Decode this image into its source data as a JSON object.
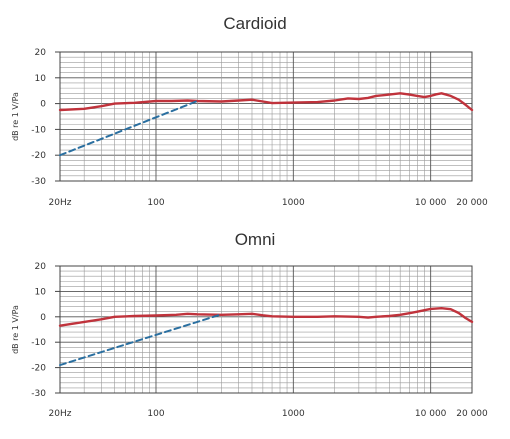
{
  "chart_data": [
    {
      "type": "line",
      "title": "Cardioid",
      "xlabel": "",
      "ylabel": "dB re 1 V/Pa",
      "x_scale": "log",
      "xlim": [
        20,
        20000
      ],
      "ylim": [
        -30,
        20
      ],
      "x_ticks": [
        20,
        100,
        1000,
        10000,
        20000
      ],
      "x_tick_labels": [
        "20Hz",
        "100",
        "1000",
        "10 000",
        "20 000"
      ],
      "y_ticks": [
        20,
        10,
        0,
        -10,
        -20,
        -30
      ],
      "y_tick_labels": [
        "20",
        "10",
        "0",
        "-10",
        "-20",
        "-30"
      ],
      "grid": true,
      "series": [
        {
          "style": "solid",
          "color": "#c0333c",
          "points": [
            [
              20,
              -2.5
            ],
            [
              30,
              -2
            ],
            [
              40,
              -1
            ],
            [
              50,
              0
            ],
            [
              70,
              0.3
            ],
            [
              100,
              1
            ],
            [
              130,
              1
            ],
            [
              170,
              1.2
            ],
            [
              200,
              1
            ],
            [
              300,
              0.8
            ],
            [
              400,
              1.2
            ],
            [
              500,
              1.5
            ],
            [
              600,
              0.8
            ],
            [
              700,
              0.2
            ],
            [
              1000,
              0.4
            ],
            [
              1500,
              0.6
            ],
            [
              2000,
              1.2
            ],
            [
              2500,
              2
            ],
            [
              3000,
              1.8
            ],
            [
              3500,
              2.2
            ],
            [
              4000,
              3
            ],
            [
              5000,
              3.5
            ],
            [
              6000,
              4
            ],
            [
              7000,
              3.5
            ],
            [
              8000,
              3
            ],
            [
              9000,
              2.5
            ],
            [
              10000,
              3
            ],
            [
              11000,
              3.6
            ],
            [
              12000,
              4
            ],
            [
              14000,
              3
            ],
            [
              16000,
              1.5
            ],
            [
              18000,
              -0.5
            ],
            [
              20000,
              -2.5
            ]
          ]
        },
        {
          "style": "dashed",
          "color": "#2a6fa0",
          "points": [
            [
              20,
              -20
            ],
            [
              200,
              1
            ]
          ]
        }
      ]
    },
    {
      "type": "line",
      "title": "Omni",
      "xlabel": "",
      "ylabel": "dB re 1 V/Pa",
      "x_scale": "log",
      "xlim": [
        20,
        20000
      ],
      "ylim": [
        -30,
        20
      ],
      "x_ticks": [
        20,
        100,
        1000,
        10000,
        20000
      ],
      "x_tick_labels": [
        "20Hz",
        "100",
        "1000",
        "10 000",
        "20 000"
      ],
      "y_ticks": [
        20,
        10,
        0,
        -10,
        -20,
        -30
      ],
      "y_tick_labels": [
        "20",
        "10",
        "0",
        "-10",
        "-20",
        "-30"
      ],
      "grid": true,
      "series": [
        {
          "style": "solid",
          "color": "#c0333c",
          "points": [
            [
              20,
              -3.5
            ],
            [
              30,
              -2
            ],
            [
              40,
              -1
            ],
            [
              50,
              0
            ],
            [
              70,
              0.3
            ],
            [
              100,
              0.5
            ],
            [
              140,
              0.8
            ],
            [
              170,
              1.2
            ],
            [
              200,
              1
            ],
            [
              300,
              0.8
            ],
            [
              400,
              1
            ],
            [
              500,
              1.2
            ],
            [
              600,
              0.6
            ],
            [
              700,
              0.2
            ],
            [
              1000,
              0
            ],
            [
              1500,
              0
            ],
            [
              2000,
              0.2
            ],
            [
              3000,
              0
            ],
            [
              3500,
              -0.3
            ],
            [
              4000,
              0
            ],
            [
              5000,
              0.3
            ],
            [
              6000,
              0.8
            ],
            [
              7000,
              1.4
            ],
            [
              8000,
              2
            ],
            [
              9000,
              2.6
            ],
            [
              10000,
              3.1
            ],
            [
              12000,
              3.4
            ],
            [
              14000,
              3
            ],
            [
              16000,
              1.5
            ],
            [
              18000,
              -0.5
            ],
            [
              20000,
              -2
            ]
          ]
        },
        {
          "style": "dashed",
          "color": "#2a6fa0",
          "points": [
            [
              20,
              -19
            ],
            [
              300,
              1
            ]
          ]
        }
      ]
    }
  ]
}
